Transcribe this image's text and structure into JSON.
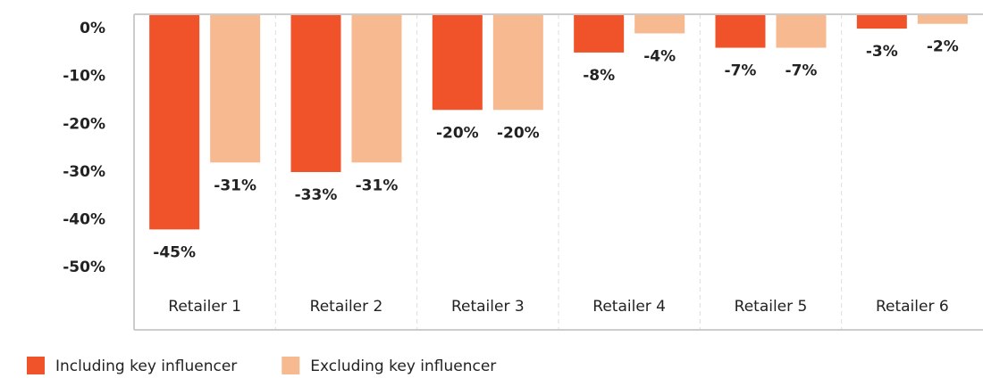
{
  "chart_data": {
    "type": "bar",
    "categories": [
      "Retailer 1",
      "Retailer 2",
      "Retailer 3",
      "Retailer 4",
      "Retailer 5",
      "Retailer 6"
    ],
    "series": [
      {
        "name": "Including key influencer",
        "color": "#f0522a",
        "values": [
          -45,
          -33,
          -20,
          -8,
          -7,
          -3
        ],
        "value_labels": [
          "-45%",
          "-33%",
          "-20%",
          "-8%",
          "-7%",
          "-3%"
        ]
      },
      {
        "name": "Excluding key influencer",
        "color": "#f7b98f",
        "values": [
          -31,
          -31,
          -20,
          -4,
          -7,
          -2
        ],
        "value_labels": [
          "-31%",
          "-31%",
          "-20%",
          "-4%",
          "-7%",
          "-2%"
        ]
      }
    ],
    "ylim": [
      -66,
      0
    ],
    "yticks": [
      {
        "value": 0,
        "label": "0%"
      },
      {
        "value": -10,
        "label": "-10%"
      },
      {
        "value": -20,
        "label": "-20%"
      },
      {
        "value": -30,
        "label": "-30%"
      },
      {
        "value": -40,
        "label": "-40%"
      },
      {
        "value": -50,
        "label": "-50%"
      }
    ],
    "legend": "bottom-left"
  }
}
